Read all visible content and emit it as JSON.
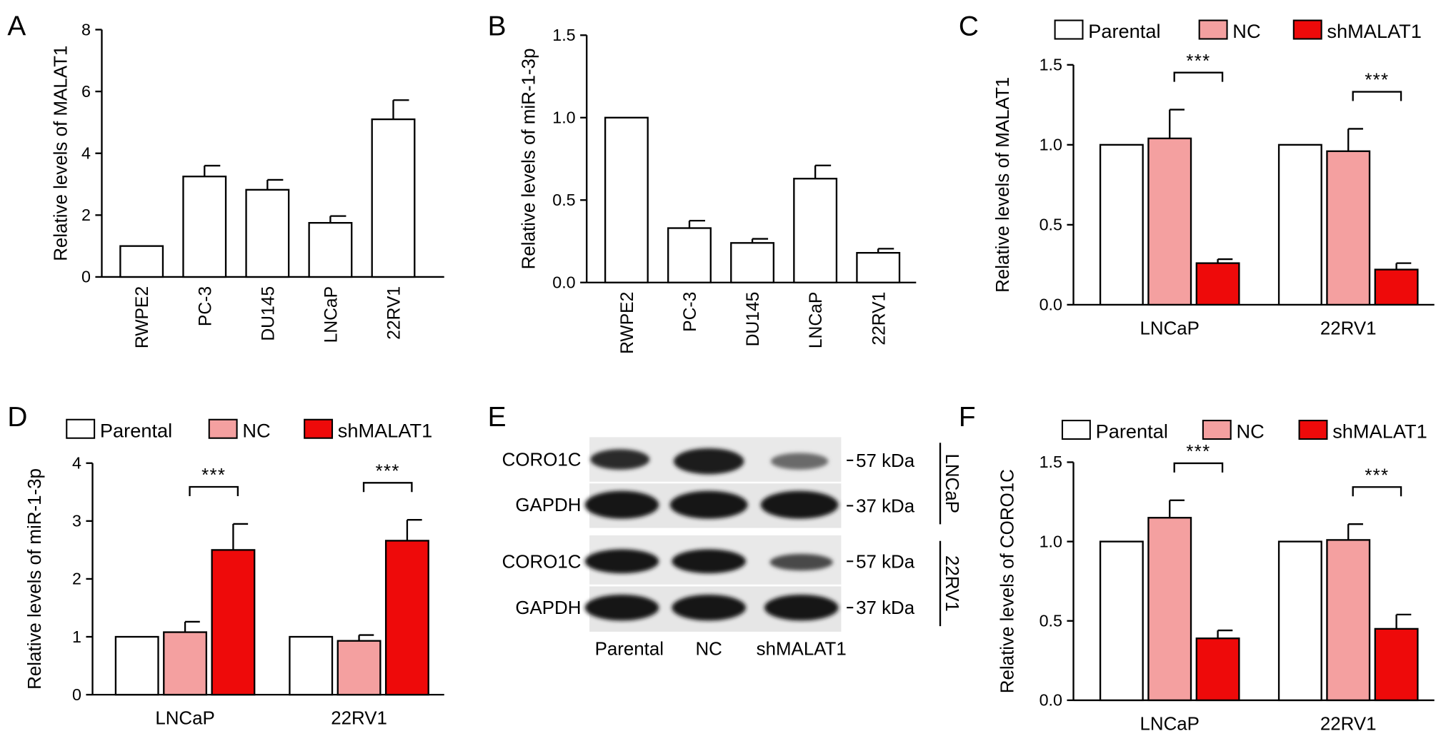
{
  "panels": {
    "A": "A",
    "B": "B",
    "C": "C",
    "D": "D",
    "E": "E",
    "F": "F"
  },
  "legend": {
    "parental": "Parental",
    "nc": "NC",
    "shmalat1": "shMALAT1"
  },
  "colors": {
    "parental": "#ffffff",
    "nc": "#f4a0a0",
    "shmalat1": "#ee0a0a",
    "stroke": "#000000"
  },
  "significance_label": "***",
  "western_blot": {
    "rows": [
      "CORO1C",
      "GAPDH",
      "CORO1C",
      "GAPDH"
    ],
    "sizes": [
      "57 kDa",
      "37 kDa",
      "57 kDa",
      "37 kDa"
    ],
    "cell_lines": [
      "LNCaP",
      "22RV1"
    ],
    "lanes": [
      "Parental",
      "NC",
      "shMALAT1"
    ]
  },
  "chart_data": [
    {
      "panel": "A",
      "type": "bar",
      "ylabel": "Relative levels of MALAT1",
      "categories": [
        "RWPE2",
        "PC-3",
        "DU145",
        "LNCaP",
        "22RV1"
      ],
      "values": [
        1.0,
        3.25,
        2.82,
        1.75,
        5.1
      ],
      "errors": [
        0,
        0.35,
        0.32,
        0.22,
        0.62
      ],
      "ylim": [
        0,
        8
      ],
      "yticks": [
        0,
        2,
        4,
        6,
        8
      ],
      "ytick_labels": [
        "0",
        "2",
        "4",
        "6",
        "8"
      ]
    },
    {
      "panel": "B",
      "type": "bar",
      "ylabel": "Relative levels of miR-1-3p",
      "categories": [
        "RWPE2",
        "PC-3",
        "DU145",
        "LNCaP",
        "22RV1"
      ],
      "values": [
        1.0,
        0.33,
        0.24,
        0.63,
        0.18
      ],
      "errors": [
        0,
        0.045,
        0.025,
        0.08,
        0.025
      ],
      "ylim": [
        0,
        1.5
      ],
      "yticks": [
        0,
        0.5,
        1.0,
        1.5
      ],
      "ytick_labels": [
        "0.0",
        "0.5",
        "1.0",
        "1.5"
      ]
    },
    {
      "panel": "C",
      "type": "bar",
      "ylabel": "Relative levels of MALAT1",
      "categories": [
        "LNCaP",
        "22RV1"
      ],
      "series": [
        {
          "name": "Parental",
          "values": [
            1.0,
            1.0
          ],
          "errors": [
            0,
            0
          ]
        },
        {
          "name": "NC",
          "values": [
            1.04,
            0.96
          ],
          "errors": [
            0.18,
            0.14
          ]
        },
        {
          "name": "shMALAT1",
          "values": [
            0.26,
            0.22
          ],
          "errors": [
            0.025,
            0.04
          ]
        }
      ],
      "ylim": [
        0,
        1.5
      ],
      "yticks": [
        0,
        0.5,
        1.0,
        1.5
      ],
      "ytick_labels": [
        "0.0",
        "0.5",
        "1.0",
        "1.5"
      ],
      "significance": [
        {
          "category": 0,
          "between": [
            "NC",
            "shMALAT1"
          ],
          "label": "***"
        },
        {
          "category": 1,
          "between": [
            "NC",
            "shMALAT1"
          ],
          "label": "***"
        }
      ]
    },
    {
      "panel": "D",
      "type": "bar",
      "ylabel": "Relative levels of miR-1-3p",
      "categories": [
        "LNCaP",
        "22RV1"
      ],
      "series": [
        {
          "name": "Parental",
          "values": [
            1.0,
            1.0
          ],
          "errors": [
            0,
            0
          ]
        },
        {
          "name": "NC",
          "values": [
            1.08,
            0.93
          ],
          "errors": [
            0.18,
            0.1
          ]
        },
        {
          "name": "shMALAT1",
          "values": [
            2.5,
            2.66
          ],
          "errors": [
            0.45,
            0.36
          ]
        }
      ],
      "ylim": [
        0,
        4
      ],
      "yticks": [
        0,
        1,
        2,
        3,
        4
      ],
      "ytick_labels": [
        "0",
        "1",
        "2",
        "3",
        "4"
      ],
      "significance": [
        {
          "category": 0,
          "between": [
            "NC",
            "shMALAT1"
          ],
          "label": "***"
        },
        {
          "category": 1,
          "between": [
            "NC",
            "shMALAT1"
          ],
          "label": "***"
        }
      ]
    },
    {
      "panel": "F",
      "type": "bar",
      "ylabel": "Relative levels of CORO1C",
      "categories": [
        "LNCaP",
        "22RV1"
      ],
      "series": [
        {
          "name": "Parental",
          "values": [
            1.0,
            1.0
          ],
          "errors": [
            0,
            0
          ]
        },
        {
          "name": "NC",
          "values": [
            1.15,
            1.01
          ],
          "errors": [
            0.11,
            0.1
          ]
        },
        {
          "name": "shMALAT1",
          "values": [
            0.39,
            0.45
          ],
          "errors": [
            0.05,
            0.09
          ]
        }
      ],
      "ylim": [
        0,
        1.5
      ],
      "yticks": [
        0,
        0.5,
        1.0,
        1.5
      ],
      "ytick_labels": [
        "0.0",
        "0.5",
        "1.0",
        "1.5"
      ],
      "significance": [
        {
          "category": 0,
          "between": [
            "NC",
            "shMALAT1"
          ],
          "label": "***"
        },
        {
          "category": 1,
          "between": [
            "NC",
            "shMALAT1"
          ],
          "label": "***"
        }
      ]
    }
  ]
}
